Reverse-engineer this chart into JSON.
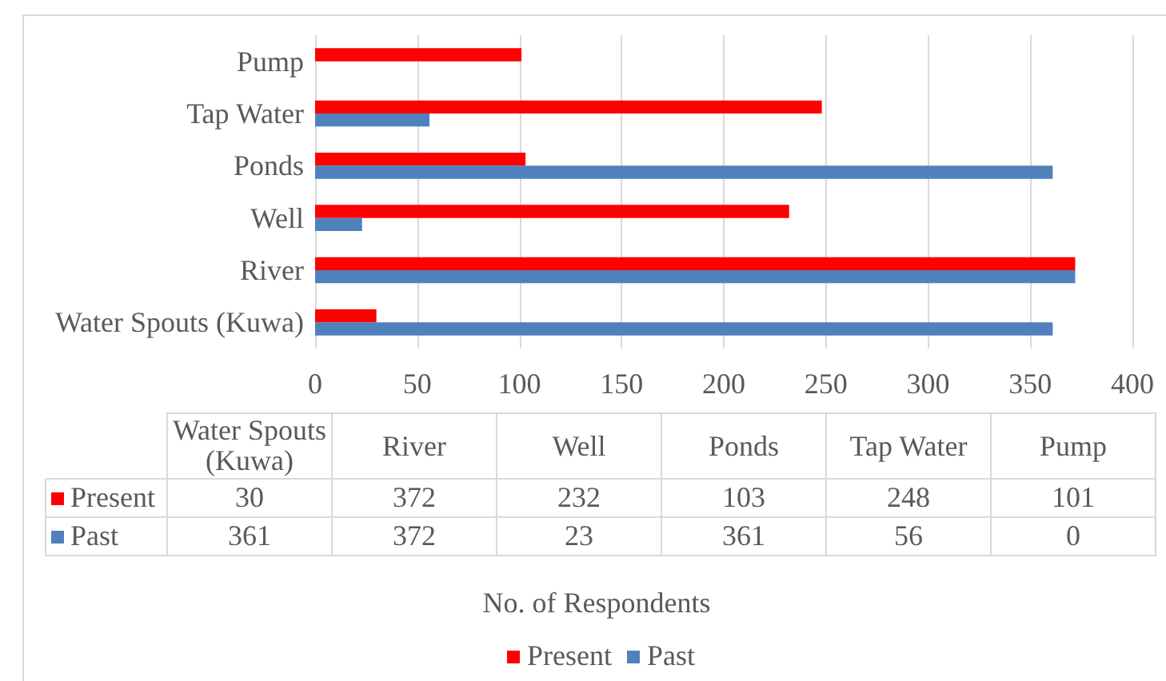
{
  "chart_data": [
    {
      "type": "bar",
      "orientation": "horizontal",
      "categories": [
        "Pump",
        "Tap Water",
        "Ponds",
        "Well",
        "River",
        "Water Spouts (Kuwa)"
      ],
      "series": [
        {
          "name": "Present",
          "color": "#ff0000",
          "values": [
            101,
            248,
            103,
            232,
            372,
            30
          ]
        },
        {
          "name": "Past",
          "color": "#4f81bd",
          "values": [
            0,
            56,
            361,
            23,
            372,
            361
          ]
        }
      ],
      "xlim": [
        0,
        400
      ],
      "xticks": [
        0,
        50,
        100,
        150,
        200,
        250,
        300,
        350,
        400
      ],
      "xlabel": "No. of Respondents",
      "grid": "x",
      "legend": "bottom"
    },
    {
      "type": "other",
      "categories": [
        "Water Spouts (Kuwa)",
        "River",
        "Well",
        "Ponds",
        "Tap Water",
        "Pump"
      ],
      "series": [
        {
          "name": "Present",
          "color": "#ff0000",
          "values": [
            30,
            372,
            232,
            103,
            248,
            101
          ]
        },
        {
          "name": "Past",
          "color": "#4f81bd",
          "values": [
            361,
            372,
            23,
            361,
            56,
            0
          ]
        }
      ],
      "data_labels": true
    }
  ]
}
